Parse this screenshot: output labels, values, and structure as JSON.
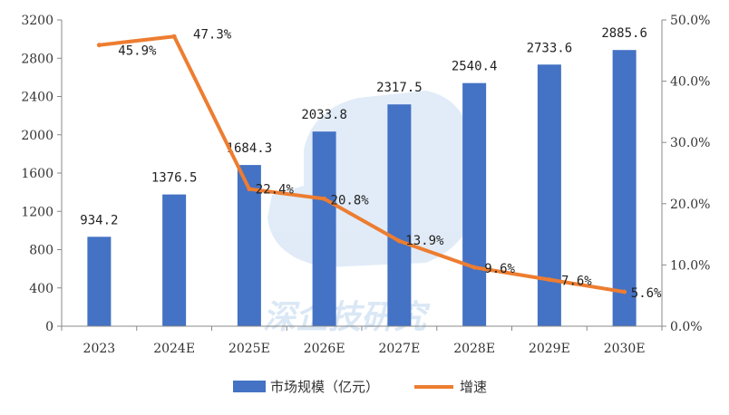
{
  "chart_data": {
    "type": "bar+line",
    "categories": [
      "2023",
      "2024E",
      "2025E",
      "2026E",
      "2027E",
      "2028E",
      "2029E",
      "2030E"
    ],
    "series": [
      {
        "name": "市场规模（亿元）",
        "type": "bar",
        "axis": "left",
        "color": "#4472c4",
        "values": [
          934.2,
          1376.5,
          1684.3,
          2033.8,
          2317.5,
          2540.4,
          2733.6,
          2885.6
        ],
        "labels": [
          "934.2",
          "1376.5",
          "1684.3",
          "2033.8",
          "2317.5",
          "2540.4",
          "2733.6",
          "2885.6"
        ]
      },
      {
        "name": "增速",
        "type": "line",
        "axis": "right",
        "color": "#ed7d31",
        "values": [
          45.9,
          47.3,
          22.4,
          20.8,
          13.9,
          9.6,
          7.6,
          5.6
        ],
        "labels": [
          "45.9%",
          "47.3%",
          "22.4%",
          "20.8%",
          "13.9%",
          "9.6%",
          "7.6%",
          "5.6%"
        ]
      }
    ],
    "y_left": {
      "ylim": [
        0,
        3200
      ],
      "ticks": [
        0,
        400,
        800,
        1200,
        1600,
        2000,
        2400,
        2800,
        3200
      ],
      "tick_labels": [
        "0",
        "400",
        "800",
        "1200",
        "1600",
        "2000",
        "2400",
        "2800",
        "3200"
      ]
    },
    "y_right": {
      "ylim": [
        0,
        50
      ],
      "ticks": [
        0,
        10,
        20,
        30,
        40,
        50
      ],
      "tick_labels": [
        "0.0%",
        "10.0%",
        "20.0%",
        "30.0%",
        "40.0%",
        "50.0%"
      ]
    },
    "legend": {
      "position": "bottom"
    },
    "grid": false,
    "watermark": "深企技研究"
  }
}
